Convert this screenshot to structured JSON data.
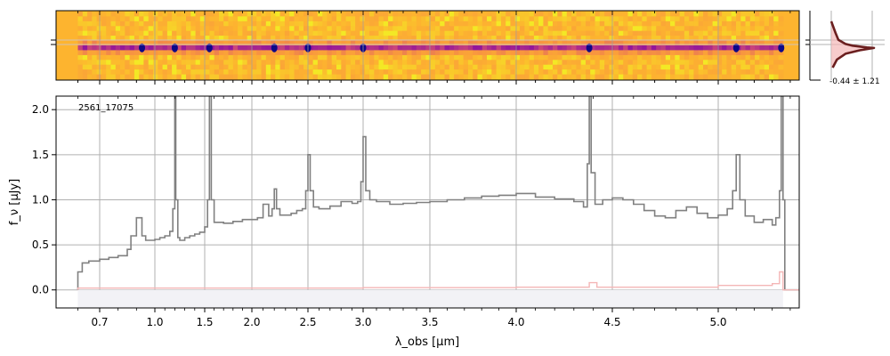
{
  "chart_data": [
    {
      "type": "image",
      "panel": "2d-spectrum",
      "colormap": "plasma",
      "trace_rows": 3,
      "xlim": [
        0.5,
        5.45
      ],
      "emission_features": [
        0.93,
        1.2,
        1.55,
        2.2,
        2.5,
        3.0,
        4.38,
        5.1,
        5.35
      ]
    },
    {
      "type": "line",
      "panel": "1d-spectrum",
      "annotation": "2561_17075",
      "xlabel": "λ_obs [μm]",
      "ylabel": "f_ν [μJy]",
      "xlim": [
        0.5,
        5.45
      ],
      "ylim": [
        -0.2,
        2.15
      ],
      "xticks": [
        0.7,
        1.0,
        1.5,
        2.0,
        2.5,
        3.0,
        3.5,
        4.0,
        4.5,
        5.0
      ],
      "xtick_labels": [
        "0.7",
        "1.0",
        "1.5",
        "2.0",
        "2.5",
        "3.0",
        "3.5",
        "4.0",
        "4.5",
        "5.0"
      ],
      "yticks": [
        0.0,
        0.5,
        1.0,
        1.5,
        2.0
      ],
      "ytick_labels": [
        "0.0",
        "0.5",
        "1.0",
        "1.5",
        "2.0"
      ],
      "grid": true,
      "series": [
        {
          "role": "flux",
          "color": "#808080",
          "x": [
            0.6,
            0.6,
            0.62,
            0.65,
            0.7,
            0.75,
            0.8,
            0.85,
            0.87,
            0.9,
            0.93,
            0.95,
            1.0,
            1.05,
            1.1,
            1.15,
            1.18,
            1.2,
            1.21,
            1.23,
            1.25,
            1.3,
            1.35,
            1.4,
            1.45,
            1.5,
            1.53,
            1.55,
            1.57,
            1.6,
            1.7,
            1.8,
            1.9,
            2.0,
            2.05,
            2.1,
            2.15,
            2.18,
            2.2,
            2.22,
            2.25,
            2.3,
            2.35,
            2.4,
            2.45,
            2.48,
            2.5,
            2.52,
            2.55,
            2.6,
            2.7,
            2.8,
            2.9,
            2.95,
            2.98,
            3.0,
            3.02,
            3.05,
            3.1,
            3.2,
            3.3,
            3.4,
            3.5,
            3.6,
            3.7,
            3.8,
            3.9,
            4.0,
            4.1,
            4.2,
            4.3,
            4.35,
            4.37,
            4.38,
            4.39,
            4.41,
            4.45,
            4.5,
            4.55,
            4.6,
            4.65,
            4.7,
            4.75,
            4.8,
            4.85,
            4.9,
            4.95,
            5.0,
            5.05,
            5.08,
            5.1,
            5.12,
            5.15,
            5.2,
            5.25,
            5.3,
            5.32,
            5.34,
            5.35,
            5.36,
            5.37,
            5.45
          ],
          "y": [
            0.0,
            0.2,
            0.3,
            0.32,
            0.34,
            0.36,
            0.38,
            0.45,
            0.6,
            0.8,
            0.6,
            0.55,
            0.56,
            0.58,
            0.6,
            0.65,
            0.9,
            2.15,
            1.0,
            0.58,
            0.55,
            0.58,
            0.6,
            0.62,
            0.64,
            0.7,
            1.0,
            2.15,
            1.0,
            0.75,
            0.74,
            0.76,
            0.78,
            0.78,
            0.8,
            0.95,
            0.82,
            0.9,
            1.12,
            0.9,
            0.83,
            0.83,
            0.85,
            0.88,
            0.9,
            1.1,
            1.5,
            1.1,
            0.92,
            0.9,
            0.93,
            0.98,
            0.96,
            0.98,
            1.2,
            1.7,
            1.1,
            1.0,
            0.98,
            0.95,
            0.96,
            0.97,
            0.98,
            1.0,
            1.02,
            1.04,
            1.05,
            1.07,
            1.03,
            1.01,
            0.98,
            0.92,
            1.4,
            2.15,
            1.3,
            0.95,
            1.0,
            1.02,
            1.0,
            0.95,
            0.88,
            0.82,
            0.8,
            0.88,
            0.92,
            0.85,
            0.8,
            0.83,
            0.9,
            1.1,
            1.5,
            1.0,
            0.82,
            0.75,
            0.78,
            0.72,
            0.8,
            1.1,
            2.15,
            1.0,
            0.0,
            0.0
          ]
        },
        {
          "role": "uncertainty",
          "color": "#f4b6b6",
          "x": [
            0.6,
            0.6,
            1.0,
            2.0,
            3.0,
            4.0,
            4.35,
            4.38,
            4.42,
            5.0,
            5.3,
            5.34,
            5.36,
            5.45
          ],
          "y": [
            0.0,
            0.02,
            0.02,
            0.02,
            0.025,
            0.03,
            0.03,
            0.08,
            0.03,
            0.05,
            0.07,
            0.2,
            0.0,
            0.0
          ]
        }
      ]
    },
    {
      "type": "line",
      "panel": "cross-dispersion-profile",
      "annotation": "-0.44 ± 1.21",
      "series": [
        {
          "role": "profile",
          "color": "#6b1f1f",
          "points": [
            [
              0.0,
              2.0
            ],
            [
              0.3,
              1.0
            ],
            [
              0.5,
              0.4
            ],
            [
              1.0,
              0.05
            ],
            [
              1.5,
              -0.1
            ],
            [
              2.5,
              -0.25
            ],
            [
              3.0,
              -0.3
            ],
            [
              2.0,
              -0.5
            ],
            [
              1.0,
              -0.8
            ],
            [
              0.4,
              -1.3
            ],
            [
              0.1,
              -2.0
            ]
          ]
        }
      ]
    }
  ]
}
